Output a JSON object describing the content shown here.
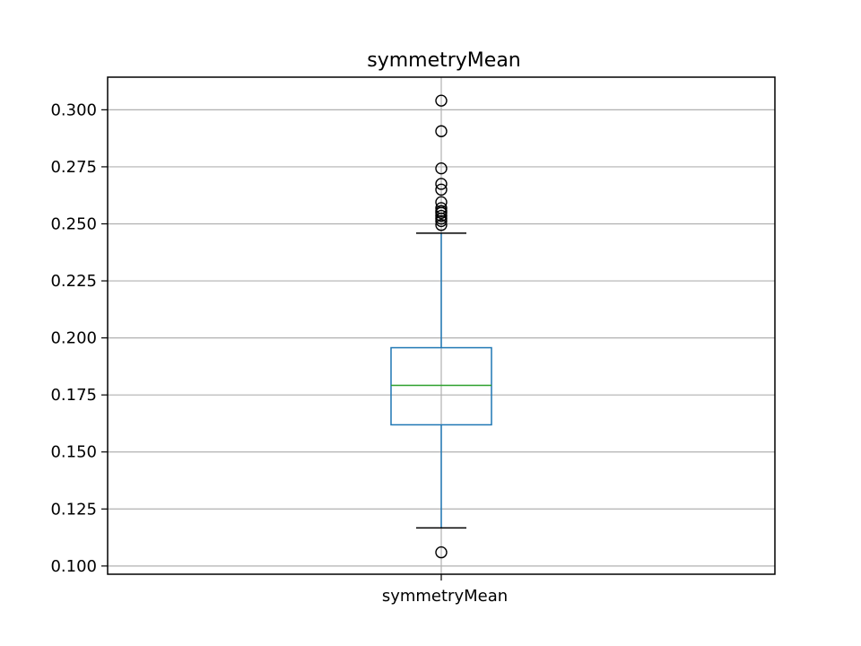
{
  "chart_data": {
    "type": "box",
    "title": "symmetryMean",
    "categories": [
      "symmetryMean"
    ],
    "ylim": [
      0.0964,
      0.3143
    ],
    "yticks": [
      0.1,
      0.125,
      0.15,
      0.175,
      0.2,
      0.225,
      0.25,
      0.275,
      0.3
    ],
    "ytick_labels": [
      "0.100",
      "0.125",
      "0.150",
      "0.175",
      "0.200",
      "0.225",
      "0.250",
      "0.275",
      "0.300"
    ],
    "grid": true,
    "box": {
      "name": "symmetryMean",
      "q1": 0.1619,
      "median": 0.1792,
      "q3": 0.1957,
      "whisker_low": 0.1167,
      "whisker_high": 0.2459,
      "outliers": [
        0.106,
        0.2495,
        0.2512,
        0.2523,
        0.2535,
        0.2548,
        0.2556,
        0.2569,
        0.2595,
        0.265,
        0.2675,
        0.2743,
        0.2906,
        0.304
      ]
    },
    "colors": {
      "box": "#1f77b4",
      "median": "#2ca02c",
      "caps": "#000000",
      "outliers": "#000000",
      "grid": "#b0b0b0"
    }
  }
}
